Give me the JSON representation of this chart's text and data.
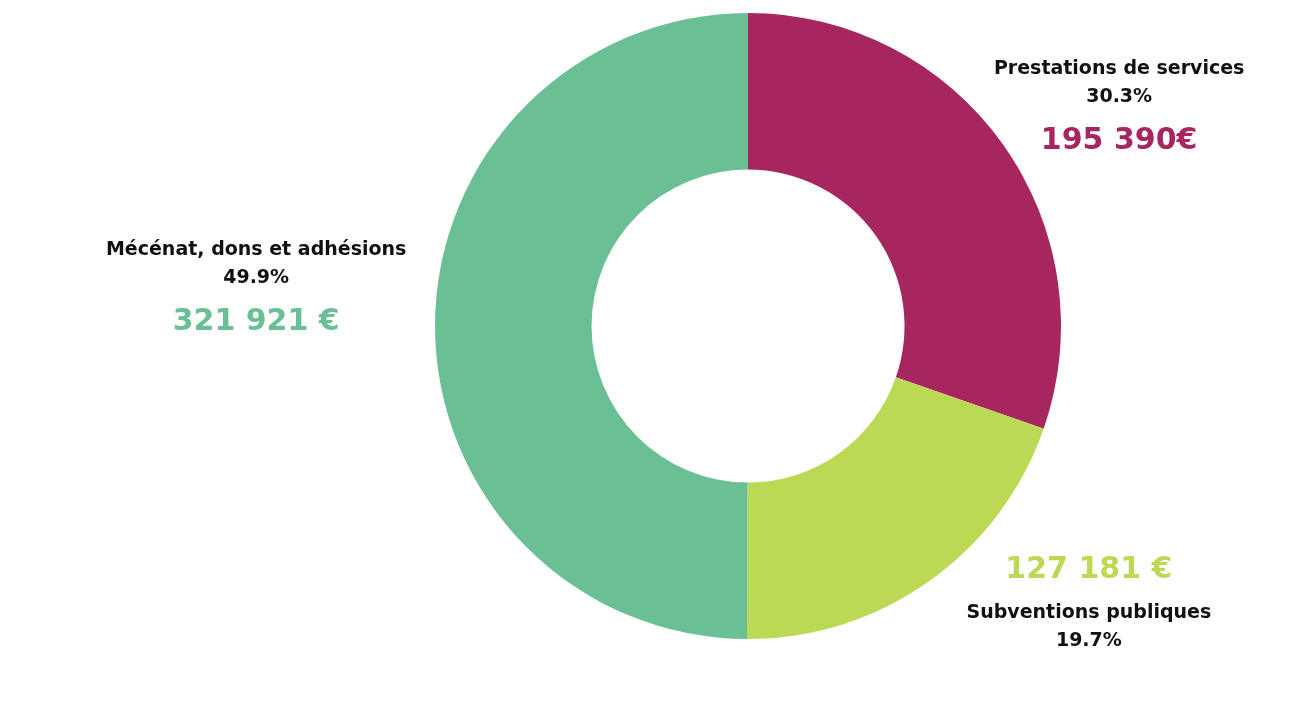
{
  "chart_data": {
    "type": "donut",
    "categories": [
      "Prestations de services",
      "Subventions publiques",
      "Mécénat, dons et adhésions"
    ],
    "values": [
      195390,
      127181,
      321921
    ],
    "colors": [
      "#a8265f",
      "#bcd955",
      "#6bbf95"
    ],
    "value_labels": [
      "195 390€",
      "127 181 €",
      "321 921 €"
    ],
    "annotations": [
      "30.3%",
      "19.7%",
      "49.9%"
    ],
    "legend": false
  }
}
